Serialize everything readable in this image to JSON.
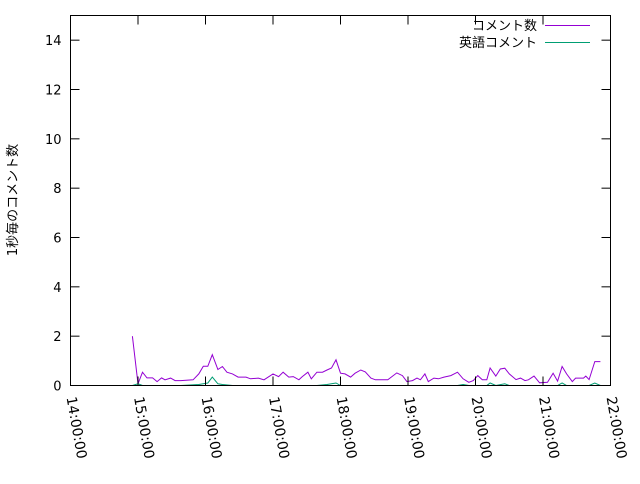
{
  "chart_data": {
    "type": "line",
    "xlabel": "",
    "ylabel": "1秒毎のコメント数",
    "xlim": [
      "14:00:00",
      "22:00:00"
    ],
    "ylim": [
      0,
      15
    ],
    "x_ticks": [
      "14:00:00",
      "15:00:00",
      "16:00:00",
      "17:00:00",
      "18:00:00",
      "19:00:00",
      "20:00:00",
      "21:00:00",
      "22:00:00"
    ],
    "y_ticks": [
      "0",
      "2",
      "4",
      "6",
      "8",
      "10",
      "12",
      "14"
    ],
    "grid": false,
    "legend_position": "top-right",
    "series": [
      {
        "name": "コメント数",
        "color": "#9400d3",
        "points": [
          [
            "14:55",
            2.0
          ],
          [
            "15:00",
            0.07
          ],
          [
            "15:04",
            0.54
          ],
          [
            "15:08",
            0.31
          ],
          [
            "15:13",
            0.31
          ],
          [
            "15:17",
            0.16
          ],
          [
            "15:21",
            0.31
          ],
          [
            "15:24",
            0.23
          ],
          [
            "15:29",
            0.3
          ],
          [
            "15:33",
            0.2
          ],
          [
            "15:38",
            0.2
          ],
          [
            "15:49",
            0.23
          ],
          [
            "15:54",
            0.47
          ],
          [
            "15:58",
            0.78
          ],
          [
            "16:02",
            0.78
          ],
          [
            "16:06",
            1.25
          ],
          [
            "16:11",
            0.65
          ],
          [
            "16:15",
            0.77
          ],
          [
            "16:19",
            0.54
          ],
          [
            "16:24",
            0.47
          ],
          [
            "16:29",
            0.34
          ],
          [
            "16:36",
            0.34
          ],
          [
            "16:40",
            0.27
          ],
          [
            "16:47",
            0.3
          ],
          [
            "16:52",
            0.23
          ],
          [
            "17:00",
            0.47
          ],
          [
            "17:05",
            0.36
          ],
          [
            "17:09",
            0.54
          ],
          [
            "17:14",
            0.34
          ],
          [
            "17:18",
            0.36
          ],
          [
            "17:23",
            0.23
          ],
          [
            "17:26",
            0.36
          ],
          [
            "17:31",
            0.54
          ],
          [
            "17:34",
            0.27
          ],
          [
            "17:39",
            0.54
          ],
          [
            "17:44",
            0.54
          ],
          [
            "17:48",
            0.63
          ],
          [
            "17:52",
            0.71
          ],
          [
            "17:56",
            1.04
          ],
          [
            "18:00",
            0.5
          ],
          [
            "18:04",
            0.47
          ],
          [
            "18:09",
            0.34
          ],
          [
            "18:13",
            0.5
          ],
          [
            "18:18",
            0.63
          ],
          [
            "18:22",
            0.55
          ],
          [
            "18:27",
            0.3
          ],
          [
            "18:31",
            0.23
          ],
          [
            "18:42",
            0.23
          ],
          [
            "18:50",
            0.51
          ],
          [
            "18:55",
            0.4
          ],
          [
            "18:59",
            0.16
          ],
          [
            "19:04",
            0.2
          ],
          [
            "19:08",
            0.3
          ],
          [
            "19:11",
            0.23
          ],
          [
            "19:15",
            0.47
          ],
          [
            "19:18",
            0.16
          ],
          [
            "19:23",
            0.3
          ],
          [
            "19:27",
            0.27
          ],
          [
            "19:32",
            0.34
          ],
          [
            "19:38",
            0.4
          ],
          [
            "19:44",
            0.54
          ],
          [
            "19:49",
            0.27
          ],
          [
            "19:54",
            0.13
          ],
          [
            "19:58",
            0.2
          ],
          [
            "20:02",
            0.4
          ],
          [
            "20:06",
            0.23
          ],
          [
            "20:10",
            0.23
          ],
          [
            "20:13",
            0.71
          ],
          [
            "20:18",
            0.38
          ],
          [
            "20:22",
            0.67
          ],
          [
            "20:26",
            0.7
          ],
          [
            "20:30",
            0.47
          ],
          [
            "20:36",
            0.24
          ],
          [
            "20:40",
            0.3
          ],
          [
            "20:44",
            0.2
          ],
          [
            "20:47",
            0.23
          ],
          [
            "20:52",
            0.38
          ],
          [
            "20:57",
            0.11
          ],
          [
            "21:04",
            0.13
          ],
          [
            "21:09",
            0.5
          ],
          [
            "21:13",
            0.18
          ],
          [
            "21:17",
            0.77
          ],
          [
            "21:21",
            0.47
          ],
          [
            "21:26",
            0.16
          ],
          [
            "21:29",
            0.3
          ],
          [
            "21:36",
            0.3
          ],
          [
            "21:38",
            0.38
          ],
          [
            "21:41",
            0.24
          ],
          [
            "21:46",
            0.97
          ],
          [
            "21:51",
            0.97
          ]
        ]
      },
      {
        "name": "英語コメント",
        "color": "#009e73",
        "points": [
          [
            "14:55",
            0.0
          ],
          [
            "15:00",
            0.07
          ],
          [
            "15:04",
            0.0
          ],
          [
            "15:38",
            0.0
          ],
          [
            "15:54",
            0.04
          ],
          [
            "15:58",
            0.07
          ],
          [
            "16:02",
            0.1
          ],
          [
            "16:06",
            0.34
          ],
          [
            "16:11",
            0.07
          ],
          [
            "16:15",
            0.04
          ],
          [
            "16:24",
            0.0
          ],
          [
            "17:39",
            0.0
          ],
          [
            "17:48",
            0.04
          ],
          [
            "17:56",
            0.1
          ],
          [
            "18:00",
            0.0
          ],
          [
            "19:44",
            0.0
          ],
          [
            "19:49",
            0.04
          ],
          [
            "19:54",
            0.0
          ],
          [
            "20:10",
            0.0
          ],
          [
            "20:13",
            0.1
          ],
          [
            "20:18",
            0.0
          ],
          [
            "20:26",
            0.07
          ],
          [
            "20:30",
            0.0
          ],
          [
            "21:13",
            0.0
          ],
          [
            "21:17",
            0.1
          ],
          [
            "21:21",
            0.0
          ],
          [
            "21:41",
            0.0
          ],
          [
            "21:46",
            0.1
          ],
          [
            "21:51",
            0.0
          ]
        ]
      }
    ]
  }
}
